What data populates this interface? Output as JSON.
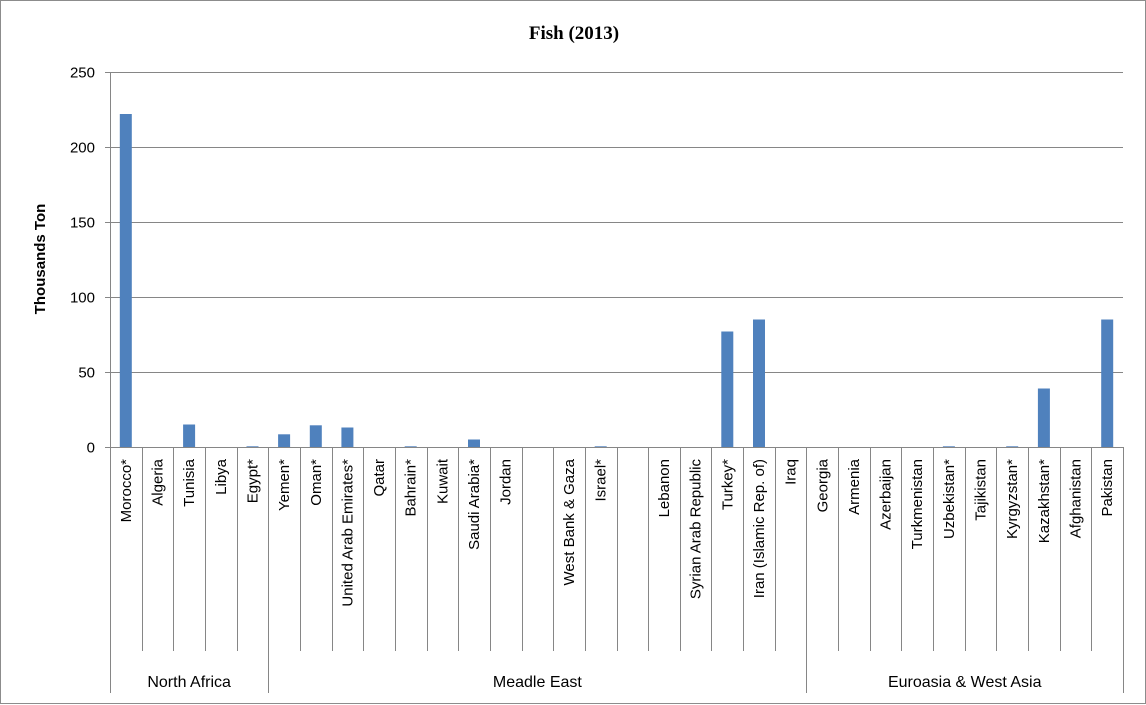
{
  "chart_data": {
    "type": "bar",
    "title": "Fish (2013)",
    "xlabel": "",
    "ylabel": "Thousands Ton",
    "ylim": [
      0,
      250
    ],
    "yticks": [
      0,
      50,
      100,
      150,
      200,
      250
    ],
    "grid": true,
    "legend": "none",
    "bar_color": "#4F81BD",
    "categories": [
      "Morocco*",
      "Algeria",
      "Tunisia",
      "Libya",
      "Egypt*",
      "Yemen*",
      "Oman*",
      "United Arab Emirates*",
      "Qatar",
      "Bahrain*",
      "Kuwait",
      "Saudi Arabia*",
      "Jordan",
      "",
      "West Bank & Gaza",
      "Israel*",
      "",
      "Lebanon",
      "Syrian Arab Republic",
      "Turkey*",
      "Iran (Islamic Rep. of)",
      "Iraq",
      "Georgia",
      "Armenia",
      "Azerbaijan",
      "Turkmenistan",
      "Uzbekistan*",
      "Tajikistan",
      "Kyrgyzstan*",
      "Kazakhstan*",
      "Afghanistan",
      "Pakistan"
    ],
    "values": [
      222,
      0,
      15,
      0,
      0.5,
      8.5,
      14.5,
      13,
      0,
      0.5,
      0,
      5,
      0,
      0,
      0,
      0.5,
      0,
      0,
      0,
      77,
      85,
      0,
      0,
      0,
      0,
      0,
      0.5,
      0,
      0.5,
      39,
      0,
      85
    ],
    "groups": [
      {
        "name": "North Africa",
        "start": 0,
        "count": 5
      },
      {
        "name": "Meadle East",
        "start": 5,
        "count": 17
      },
      {
        "name": "Euroasia & West Asia",
        "start": 22,
        "count": 10
      }
    ]
  }
}
